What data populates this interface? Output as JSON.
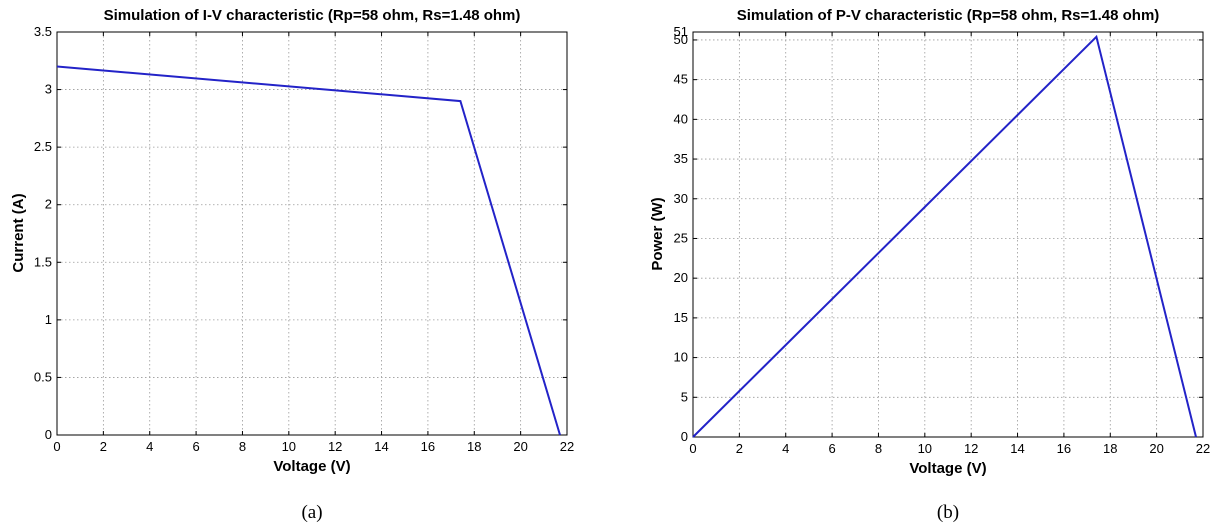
{
  "chart_data": [
    {
      "type": "line",
      "title": "Simulation of I-V characteristic (Rp=58 ohm, Rs=1.48 ohm)",
      "xlabel": "Voltage (V)",
      "ylabel": "Current (A)",
      "xlim": [
        0,
        22
      ],
      "ylim": [
        0,
        3.5
      ],
      "xticks": [
        "0",
        "2",
        "4",
        "6",
        "8",
        "10",
        "12",
        "14",
        "16",
        "18",
        "20",
        "22"
      ],
      "yticks": [
        "0",
        "0.5",
        "1",
        "1.5",
        "2",
        "2.5",
        "3",
        "3.5"
      ],
      "grid": true,
      "caption": "(a)",
      "series": [
        {
          "color": "#2323c8",
          "x": [
            0,
            17.4,
            21.7
          ],
          "y": [
            3.2,
            2.9,
            0
          ]
        }
      ]
    },
    {
      "type": "line",
      "title": "Simulation of P-V characteristic (Rp=58 ohm, Rs=1.48 ohm)",
      "xlabel": "Voltage (V)",
      "ylabel": "Power (W)",
      "xlim": [
        0,
        22
      ],
      "ylim": [
        0,
        51
      ],
      "xticks": [
        "0",
        "2",
        "4",
        "6",
        "8",
        "10",
        "12",
        "14",
        "16",
        "18",
        "20",
        "22"
      ],
      "yticks": [
        "0",
        "5",
        "10",
        "15",
        "20",
        "25",
        "30",
        "35",
        "40",
        "45",
        "50",
        "51"
      ],
      "grid": true,
      "caption": "(b)",
      "series": [
        {
          "color": "#2323c8",
          "x": [
            0,
            17.4,
            21.7
          ],
          "y": [
            0,
            50.4,
            0
          ]
        }
      ]
    }
  ]
}
